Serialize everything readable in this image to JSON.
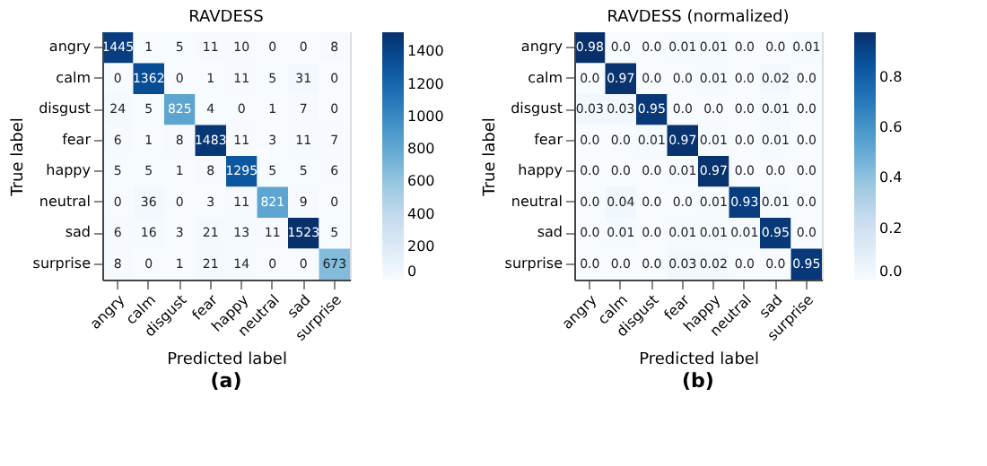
{
  "chart_data": [
    {
      "type": "heatmap",
      "title": "RAVDESS",
      "xlabel": "Predicted label",
      "ylabel": "True label",
      "annotations": [
        "(a)"
      ],
      "categories": [
        "angry",
        "calm",
        "disgust",
        "fear",
        "happy",
        "neutral",
        "sad",
        "surprise"
      ],
      "y_categories": [
        "angry",
        "calm",
        "disgust",
        "fear",
        "happy",
        "neutral",
        "sad",
        "surprise"
      ],
      "cells": [
        [
          1445,
          1,
          5,
          11,
          10,
          0,
          0,
          8
        ],
        [
          0,
          1362,
          0,
          1,
          11,
          5,
          31,
          0
        ],
        [
          24,
          5,
          825,
          4,
          0,
          1,
          7,
          0
        ],
        [
          6,
          1,
          8,
          1483,
          11,
          3,
          11,
          7
        ],
        [
          5,
          5,
          1,
          8,
          1295,
          5,
          5,
          6
        ],
        [
          0,
          36,
          0,
          3,
          11,
          821,
          9,
          0
        ],
        [
          6,
          16,
          3,
          21,
          13,
          11,
          1523,
          5
        ],
        [
          8,
          0,
          1,
          21,
          14,
          0,
          0,
          673
        ]
      ],
      "data_labels": true,
      "clim": [
        0,
        1523
      ],
      "cticks": [
        0,
        200,
        400,
        600,
        800,
        1000,
        1200,
        1400
      ]
    },
    {
      "type": "heatmap",
      "title": "RAVDESS (normalized)",
      "xlabel": "Predicted label",
      "ylabel": "True label",
      "annotations": [
        "(b)"
      ],
      "categories": [
        "angry",
        "calm",
        "disgust",
        "fear",
        "happy",
        "neutral",
        "sad",
        "surprise"
      ],
      "y_categories": [
        "angry",
        "calm",
        "disgust",
        "fear",
        "happy",
        "neutral",
        "sad",
        "surprise"
      ],
      "cells": [
        [
          0.98,
          0,
          0,
          0.01,
          0.01,
          0,
          0,
          0.01
        ],
        [
          0,
          0.97,
          0,
          0,
          0.01,
          0,
          0.02,
          0
        ],
        [
          0.03,
          0.03,
          0.95,
          0,
          0,
          0,
          0.01,
          0
        ],
        [
          0,
          0,
          0.01,
          0.97,
          0.01,
          0,
          0.01,
          0
        ],
        [
          0,
          0,
          0,
          0.01,
          0.97,
          0,
          0,
          0
        ],
        [
          0,
          0.04,
          0,
          0,
          0.01,
          0.93,
          0.01,
          0
        ],
        [
          0,
          0.01,
          0,
          0.01,
          0.01,
          0.01,
          0.95,
          0
        ],
        [
          0,
          0,
          0,
          0.03,
          0.02,
          0,
          0,
          0.95
        ]
      ],
      "cell_labels": [
        [
          "0.98",
          "0.0",
          "0.0",
          "0.01",
          "0.01",
          "0.0",
          "0.0",
          "0.01"
        ],
        [
          "0.0",
          "0.97",
          "0.0",
          "0.0",
          "0.01",
          "0.0",
          "0.02",
          "0.0"
        ],
        [
          "0.03",
          "0.03",
          "0.95",
          "0.0",
          "0.0",
          "0.0",
          "0.01",
          "0.0"
        ],
        [
          "0.0",
          "0.0",
          "0.01",
          "0.97",
          "0.01",
          "0.0",
          "0.01",
          "0.0"
        ],
        [
          "0.0",
          "0.0",
          "0.0",
          "0.01",
          "0.97",
          "0.0",
          "0.0",
          "0.0"
        ],
        [
          "0.0",
          "0.04",
          "0.0",
          "0.0",
          "0.01",
          "0.93",
          "0.01",
          "0.0"
        ],
        [
          "0.0",
          "0.01",
          "0.0",
          "0.01",
          "0.01",
          "0.01",
          "0.95",
          "0.0"
        ],
        [
          "0.0",
          "0.0",
          "0.0",
          "0.03",
          "0.02",
          "0.0",
          "0.0",
          "0.95"
        ]
      ],
      "clim": [
        0,
        0.98
      ],
      "cticks": [
        {
          "value": 0,
          "label": "0.0"
        },
        {
          "value": 0.2,
          "label": "0.2"
        },
        {
          "value": 0.4,
          "label": "0.4"
        },
        {
          "value": 0.6,
          "label": "0.6"
        },
        {
          "value": 0.8,
          "label": "0.8"
        }
      ]
    }
  ]
}
